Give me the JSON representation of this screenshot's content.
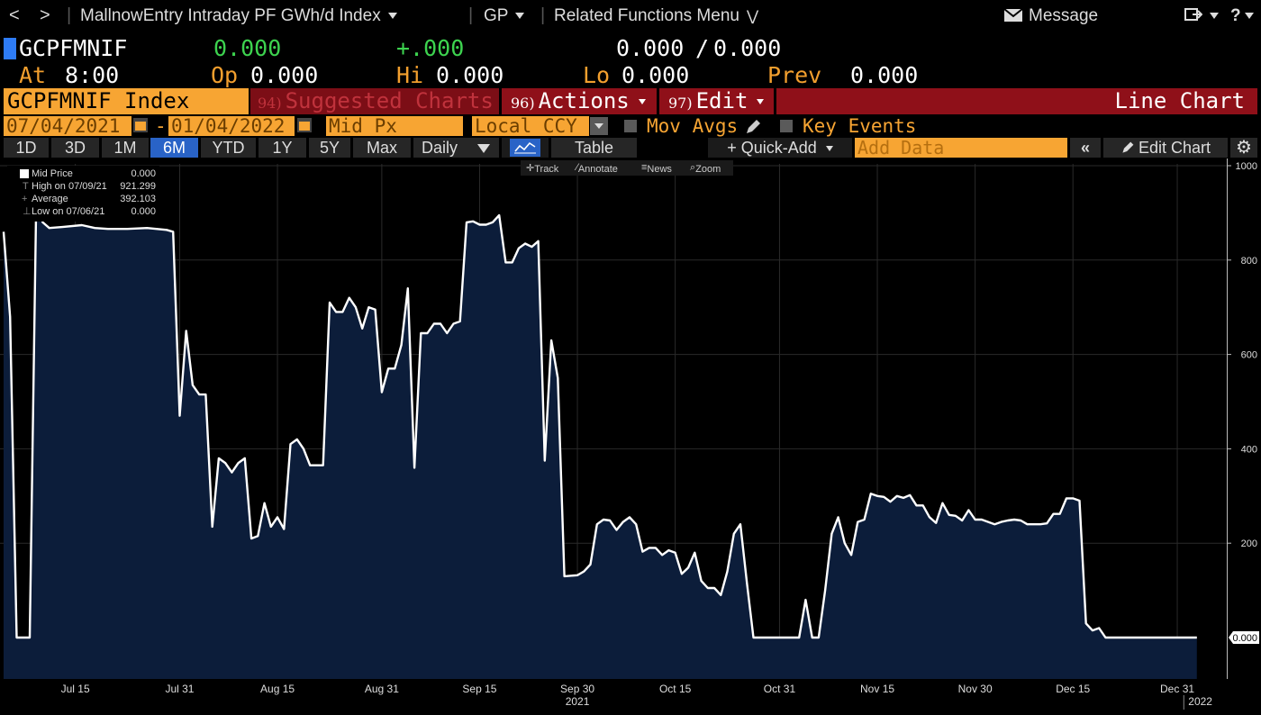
{
  "nav": {
    "back": "<",
    "forward": ">",
    "title": "MallnowEntry Intraday PF GWh/d Index",
    "gp": "GP",
    "related": "Related Functions Menu",
    "message": "Message",
    "help": "?"
  },
  "quote": {
    "ticker": "GCPFMNIF",
    "last": "0.000",
    "change": "+.000",
    "bidask": "0.000 0.000",
    "bid": "0.000",
    "slash": "/",
    "ask": "0.000",
    "at_label": "At",
    "at_value": "8:00",
    "op_label": "Op",
    "op_value": "0.000",
    "hi_label": "Hi",
    "hi_value": "0.000",
    "lo_label": "Lo",
    "lo_value": "0.000",
    "prev_label": "Prev",
    "prev_value": "0.000"
  },
  "header": {
    "security": "GCPFMNIF Index",
    "sugg_num": "94)",
    "sugg_label": "Suggested Charts",
    "act_num": "96)",
    "act_label": "Actions",
    "edit_num": "97)",
    "edit_label": "Edit",
    "chart_type_label": "Line Chart"
  },
  "controls": {
    "start_date": "07/04/2021",
    "dash": "-",
    "end_date": "01/04/2022",
    "field": "Mid Px",
    "currency": "Local CCY",
    "mov_avgs": "Mov Avgs",
    "key_events": "Key Events"
  },
  "ranges": {
    "buttons": [
      "1D",
      "3D",
      "1M",
      "6M",
      "YTD",
      "1Y",
      "5Y",
      "Max"
    ],
    "active": "6M",
    "period": "Daily",
    "table": "Table",
    "quick_add": "+ Quick-Add",
    "add_data_placeholder": "Add Data",
    "edit_chart": "Edit Chart"
  },
  "legend": {
    "series": "Mid Price",
    "series_value": "0.000",
    "high_label": "High on 07/09/21",
    "high_value": "921.299",
    "avg_label": "Average",
    "avg_value": "392.103",
    "low_label": "Low on 07/06/21",
    "low_value": "0.000"
  },
  "tools": {
    "track": "Track",
    "annotate": "Annotate",
    "news": "News",
    "zoom": "Zoom"
  },
  "colors": {
    "background": "#000000",
    "line": "#ffffff",
    "fill": "#0c1d3a",
    "grid": "#2a2a2a",
    "accent": "#f7a533",
    "banner": "#8f1019"
  },
  "chart_data": {
    "type": "area",
    "title": "",
    "xlabel": "",
    "ylabel": "",
    "ylim": [
      0,
      1000
    ],
    "yticks": [
      200,
      400,
      600,
      800,
      1000
    ],
    "last_value_label": "0.000",
    "xtick_labels": [
      "Jul 15",
      "Jul 31",
      "Aug 15",
      "Aug 31",
      "Sep 15",
      "Sep 30",
      "Oct 15",
      "Oct 31",
      "Nov 15",
      "Nov 30",
      "Dec 15",
      "Dec 31"
    ],
    "year_labels": [
      "2021",
      "2022"
    ],
    "series": [
      {
        "values": [
          [
            "2021-07-04",
            860
          ],
          [
            "2021-07-05",
            680
          ],
          [
            "2021-07-06",
            0
          ],
          [
            "2021-07-08",
            0
          ],
          [
            "2021-07-09",
            921
          ],
          [
            "2021-07-10",
            880
          ],
          [
            "2021-07-11",
            868
          ],
          [
            "2021-07-13",
            870
          ],
          [
            "2021-07-16",
            874
          ],
          [
            "2021-07-18",
            868
          ],
          [
            "2021-07-20",
            866
          ],
          [
            "2021-07-23",
            866
          ],
          [
            "2021-07-26",
            868
          ],
          [
            "2021-07-29",
            864
          ],
          [
            "2021-07-30",
            860
          ],
          [
            "2021-07-31",
            470
          ],
          [
            "2021-08-01",
            650
          ],
          [
            "2021-08-02",
            535
          ],
          [
            "2021-08-03",
            515
          ],
          [
            "2021-08-04",
            515
          ],
          [
            "2021-08-05",
            235
          ],
          [
            "2021-08-06",
            380
          ],
          [
            "2021-08-07",
            370
          ],
          [
            "2021-08-08",
            350
          ],
          [
            "2021-08-09",
            370
          ],
          [
            "2021-08-10",
            380
          ],
          [
            "2021-08-11",
            210
          ],
          [
            "2021-08-12",
            215
          ],
          [
            "2021-08-13",
            285
          ],
          [
            "2021-08-14",
            235
          ],
          [
            "2021-08-15",
            255
          ],
          [
            "2021-08-16",
            230
          ],
          [
            "2021-08-17",
            410
          ],
          [
            "2021-08-18",
            420
          ],
          [
            "2021-08-19",
            400
          ],
          [
            "2021-08-20",
            365
          ],
          [
            "2021-08-22",
            365
          ],
          [
            "2021-08-23",
            710
          ],
          [
            "2021-08-24",
            690
          ],
          [
            "2021-08-25",
            690
          ],
          [
            "2021-08-26",
            720
          ],
          [
            "2021-08-27",
            700
          ],
          [
            "2021-08-28",
            655
          ],
          [
            "2021-08-29",
            700
          ],
          [
            "2021-08-30",
            695
          ],
          [
            "2021-08-31",
            520
          ],
          [
            "2021-09-01",
            570
          ],
          [
            "2021-09-02",
            570
          ],
          [
            "2021-09-03",
            620
          ],
          [
            "2021-09-04",
            740
          ],
          [
            "2021-09-05",
            360
          ],
          [
            "2021-09-06",
            645
          ],
          [
            "2021-09-07",
            645
          ],
          [
            "2021-09-08",
            665
          ],
          [
            "2021-09-09",
            665
          ],
          [
            "2021-09-10",
            645
          ],
          [
            "2021-09-11",
            665
          ],
          [
            "2021-09-12",
            670
          ],
          [
            "2021-09-13",
            880
          ],
          [
            "2021-09-14",
            882
          ],
          [
            "2021-09-15",
            875
          ],
          [
            "2021-09-16",
            875
          ],
          [
            "2021-09-17",
            880
          ],
          [
            "2021-09-18",
            895
          ],
          [
            "2021-09-19",
            795
          ],
          [
            "2021-09-20",
            795
          ],
          [
            "2021-09-21",
            825
          ],
          [
            "2021-09-22",
            835
          ],
          [
            "2021-09-23",
            828
          ],
          [
            "2021-09-24",
            840
          ],
          [
            "2021-09-25",
            375
          ],
          [
            "2021-09-26",
            630
          ],
          [
            "2021-09-27",
            550
          ],
          [
            "2021-09-28",
            130
          ],
          [
            "2021-09-30",
            132
          ],
          [
            "2021-10-01",
            140
          ],
          [
            "2021-10-02",
            155
          ],
          [
            "2021-10-03",
            240
          ],
          [
            "2021-10-04",
            250
          ],
          [
            "2021-10-05",
            248
          ],
          [
            "2021-10-06",
            228
          ],
          [
            "2021-10-07",
            245
          ],
          [
            "2021-10-08",
            255
          ],
          [
            "2021-10-09",
            240
          ],
          [
            "2021-10-10",
            182
          ],
          [
            "2021-10-11",
            190
          ],
          [
            "2021-10-12",
            190
          ],
          [
            "2021-10-13",
            175
          ],
          [
            "2021-10-14",
            185
          ],
          [
            "2021-10-15",
            180
          ],
          [
            "2021-10-16",
            135
          ],
          [
            "2021-10-17",
            148
          ],
          [
            "2021-10-18",
            180
          ],
          [
            "2021-10-19",
            120
          ],
          [
            "2021-10-20",
            105
          ],
          [
            "2021-10-21",
            105
          ],
          [
            "2021-10-22",
            90
          ],
          [
            "2021-10-23",
            140
          ],
          [
            "2021-10-24",
            220
          ],
          [
            "2021-10-25",
            240
          ],
          [
            "2021-10-26",
            115
          ],
          [
            "2021-10-27",
            0
          ],
          [
            "2021-10-28",
            0
          ],
          [
            "2021-11-03",
            0
          ],
          [
            "2021-11-04",
            80
          ],
          [
            "2021-11-05",
            0
          ],
          [
            "2021-11-06",
            0
          ],
          [
            "2021-11-07",
            100
          ],
          [
            "2021-11-08",
            220
          ],
          [
            "2021-11-09",
            255
          ],
          [
            "2021-11-10",
            200
          ],
          [
            "2021-11-11",
            175
          ],
          [
            "2021-11-12",
            245
          ],
          [
            "2021-11-13",
            250
          ],
          [
            "2021-11-14",
            305
          ],
          [
            "2021-11-15",
            300
          ],
          [
            "2021-11-16",
            298
          ],
          [
            "2021-11-17",
            288
          ],
          [
            "2021-11-18",
            300
          ],
          [
            "2021-11-19",
            296
          ],
          [
            "2021-11-20",
            302
          ],
          [
            "2021-11-21",
            280
          ],
          [
            "2021-11-22",
            280
          ],
          [
            "2021-11-23",
            255
          ],
          [
            "2021-11-24",
            243
          ],
          [
            "2021-11-25",
            285
          ],
          [
            "2021-11-26",
            260
          ],
          [
            "2021-11-27",
            258
          ],
          [
            "2021-11-28",
            248
          ],
          [
            "2021-11-29",
            270
          ],
          [
            "2021-11-30",
            250
          ],
          [
            "2021-12-01",
            250
          ],
          [
            "2021-12-02",
            245
          ],
          [
            "2021-12-03",
            240
          ],
          [
            "2021-12-04",
            245
          ],
          [
            "2021-12-05",
            248
          ],
          [
            "2021-12-06",
            250
          ],
          [
            "2021-12-07",
            248
          ],
          [
            "2021-12-08",
            240
          ],
          [
            "2021-12-09",
            240
          ],
          [
            "2021-12-10",
            240
          ],
          [
            "2021-12-11",
            242
          ],
          [
            "2021-12-12",
            262
          ],
          [
            "2021-12-13",
            262
          ],
          [
            "2021-12-14",
            295
          ],
          [
            "2021-12-15",
            295
          ],
          [
            "2021-12-16",
            290
          ],
          [
            "2021-12-17",
            30
          ],
          [
            "2021-12-18",
            15
          ],
          [
            "2021-12-19",
            20
          ],
          [
            "2021-12-20",
            0
          ],
          [
            "2022-01-03",
            0
          ]
        ]
      }
    ]
  }
}
